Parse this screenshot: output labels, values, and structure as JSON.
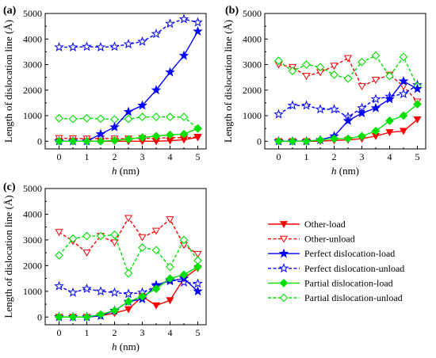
{
  "colors": {
    "other": "#ff0000",
    "perfect": "#0000ff",
    "partial": "#00e000",
    "axis": "#000000"
  },
  "legend": [
    {
      "label": "Other-load",
      "color": "#ff0000",
      "dashed": false,
      "marker": "triangle-down",
      "filled": true
    },
    {
      "label": "Other-unload",
      "color": "#ff0000",
      "dashed": true,
      "marker": "triangle-down",
      "filled": false
    },
    {
      "label": "Perfect dislocation-load",
      "color": "#0000ff",
      "dashed": false,
      "marker": "star",
      "filled": true
    },
    {
      "label": "Perfect dislocation-unload",
      "color": "#0000ff",
      "dashed": true,
      "marker": "star",
      "filled": false
    },
    {
      "label": "Partial dislocation-load",
      "color": "#00e000",
      "dashed": false,
      "marker": "diamond",
      "filled": true
    },
    {
      "label": "Partial dislocation-unload",
      "color": "#00e000",
      "dashed": true,
      "marker": "diamond",
      "filled": false
    }
  ],
  "chart_data": [
    {
      "panel": "(a)",
      "type": "line",
      "xlabel": "h (nm)",
      "ylabel": "Length of dislocation line (Å)",
      "xlim": [
        -0.5,
        5.3
      ],
      "ylim": [
        -300,
        5000
      ],
      "xticks": [
        0,
        1,
        2,
        3,
        4,
        5
      ],
      "yticks": [
        0,
        1000,
        2000,
        3000,
        4000,
        5000
      ],
      "x": [
        0,
        0.5,
        1,
        1.5,
        2,
        2.5,
        3,
        3.5,
        4,
        4.5,
        5
      ],
      "series": [
        {
          "name": "Other-load",
          "values": [
            0,
            0,
            0,
            0,
            0,
            0,
            0,
            0,
            20,
            60,
            150
          ]
        },
        {
          "name": "Other-unload",
          "values": [
            120,
            110,
            100,
            110,
            100,
            100,
            120,
            110,
            150,
            130,
            170
          ]
        },
        {
          "name": "Perfect dislocation-load",
          "values": [
            0,
            0,
            0,
            280,
            550,
            1150,
            1400,
            2000,
            2700,
            3350,
            4300
          ]
        },
        {
          "name": "Perfect dislocation-unload",
          "values": [
            3680,
            3680,
            3700,
            3680,
            3700,
            3800,
            3900,
            4200,
            4600,
            4780,
            4650
          ]
        },
        {
          "name": "Partial dislocation-load",
          "values": [
            0,
            0,
            0,
            0,
            30,
            80,
            150,
            200,
            250,
            280,
            500
          ]
        },
        {
          "name": "Partial dislocation-unload",
          "values": [
            900,
            870,
            900,
            880,
            850,
            870,
            950,
            950,
            950,
            950,
            500
          ]
        }
      ]
    },
    {
      "panel": "(b)",
      "type": "line",
      "xlabel": "h (nm)",
      "ylabel": "Length of dislocation line (Å)",
      "xlim": [
        -0.5,
        5.3
      ],
      "ylim": [
        -300,
        5000
      ],
      "xticks": [
        0,
        1,
        2,
        3,
        4,
        5
      ],
      "yticks": [
        0,
        1000,
        2000,
        3000,
        4000,
        5000
      ],
      "x": [
        0,
        0.5,
        1,
        1.5,
        2,
        2.5,
        3,
        3.5,
        4,
        4.5,
        5
      ],
      "series": [
        {
          "name": "Other-load",
          "values": [
            0,
            0,
            0,
            0,
            30,
            50,
            100,
            200,
            350,
            400,
            850
          ]
        },
        {
          "name": "Other-unload",
          "values": [
            3000,
            2900,
            2550,
            2700,
            2950,
            3250,
            2150,
            2400,
            2600,
            2150,
            1550
          ]
        },
        {
          "name": "Perfect dislocation-load",
          "values": [
            0,
            0,
            0,
            50,
            200,
            800,
            1100,
            1300,
            1650,
            2350,
            2050
          ]
        },
        {
          "name": "Perfect dislocation-unload",
          "values": [
            1050,
            1400,
            1400,
            1250,
            1250,
            950,
            1300,
            1650,
            1750,
            1850,
            2200
          ]
        },
        {
          "name": "Partial dislocation-load",
          "values": [
            0,
            0,
            0,
            50,
            100,
            100,
            200,
            400,
            800,
            1000,
            1450
          ]
        },
        {
          "name": "Partial dislocation-unload",
          "values": [
            3150,
            2750,
            3000,
            2900,
            2600,
            2450,
            3100,
            3350,
            2550,
            3300,
            2150
          ]
        }
      ]
    },
    {
      "panel": "(c)",
      "type": "line",
      "xlabel": "h (nm)",
      "ylabel": "Length of dislocation line (Å)",
      "xlim": [
        -0.5,
        5.3
      ],
      "ylim": [
        -300,
        5000
      ],
      "xticks": [
        0,
        1,
        2,
        3,
        4,
        5
      ],
      "yticks": [
        0,
        1000,
        2000,
        3000,
        4000,
        5000
      ],
      "x": [
        0,
        0.5,
        1,
        1.5,
        2,
        2.5,
        3,
        3.5,
        4,
        4.5,
        5
      ],
      "series": [
        {
          "name": "Other-load",
          "values": [
            0,
            0,
            0,
            50,
            150,
            300,
            800,
            450,
            650,
            1500,
            1900
          ]
        },
        {
          "name": "Other-unload",
          "values": [
            3300,
            2950,
            2500,
            3150,
            2900,
            3850,
            3100,
            3350,
            3800,
            2800,
            2450
          ]
        },
        {
          "name": "Perfect dislocation-load",
          "values": [
            0,
            0,
            0,
            50,
            250,
            600,
            700,
            1250,
            1400,
            1500,
            1000
          ]
        },
        {
          "name": "Perfect dislocation-unload",
          "values": [
            1200,
            950,
            1100,
            1000,
            950,
            900,
            950,
            1200,
            1450,
            1350,
            1300
          ]
        },
        {
          "name": "Partial dislocation-load",
          "values": [
            0,
            0,
            0,
            100,
            250,
            600,
            800,
            1100,
            1500,
            1650,
            1950
          ]
        },
        {
          "name": "Partial dislocation-unload",
          "values": [
            2400,
            3050,
            3150,
            3150,
            3200,
            1700,
            2700,
            2600,
            1950,
            3000,
            2200
          ]
        }
      ]
    }
  ]
}
